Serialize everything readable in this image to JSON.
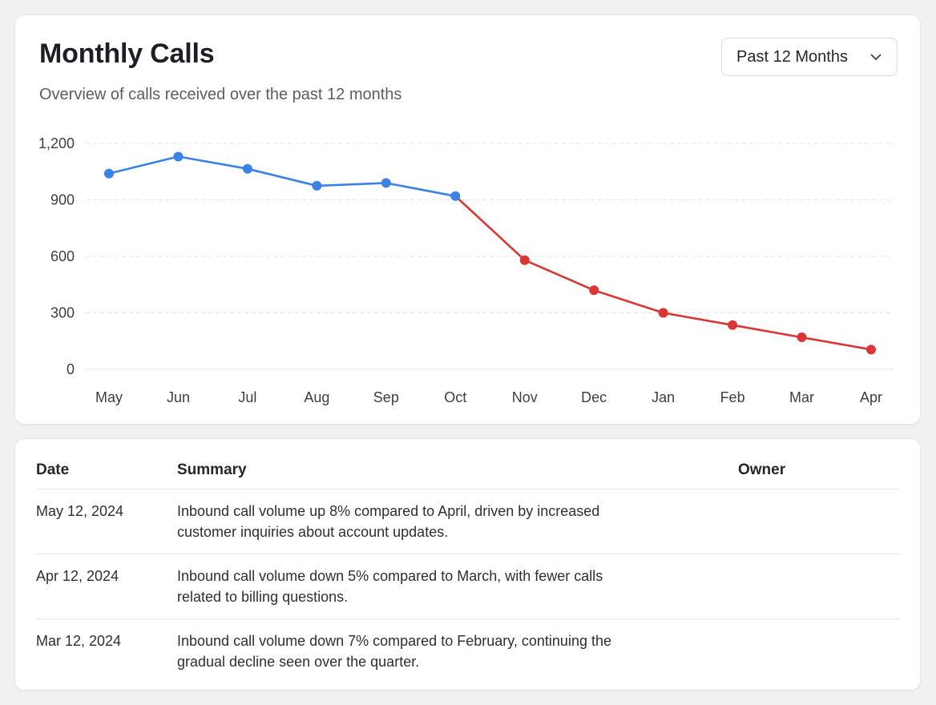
{
  "header": {
    "title": "Monthly Calls",
    "subtitle": "Overview of calls received over the past 12 months",
    "range_select": {
      "selected": "Past 12 Months",
      "icon": "chevron-down-icon"
    }
  },
  "chart_data": {
    "type": "line",
    "x": [
      "May",
      "Jun",
      "Jul",
      "Aug",
      "Sep",
      "Oct",
      "Nov",
      "Dec",
      "Jan",
      "Feb",
      "Mar",
      "Apr"
    ],
    "values": [
      1040,
      1130,
      1065,
      975,
      990,
      920,
      580,
      420,
      300,
      235,
      170,
      105
    ],
    "ylim": [
      0,
      1200
    ],
    "yticks": [
      0,
      300,
      600,
      900,
      1200
    ],
    "ytick_labels": [
      "0",
      "300",
      "600",
      "900",
      "1,200"
    ],
    "grid": true,
    "segments": [
      {
        "from_index": 0,
        "to_index": 5,
        "color": "#3b82e6"
      },
      {
        "from_index": 5,
        "to_index": 11,
        "color": "#dc3535"
      }
    ],
    "title": "",
    "xlabel": "",
    "ylabel": ""
  },
  "table": {
    "headers": {
      "date": "Date",
      "summary": "Summary",
      "owner": "Owner"
    },
    "rows": [
      {
        "date": "May 12, 2024",
        "summary": "Inbound call volume up 8% compared to April, driven by increased customer inquiries about account updates.",
        "owner": ""
      },
      {
        "date": "Apr 12, 2024",
        "summary": "Inbound call volume down 5% compared to March, with fewer calls related to billing questions.",
        "owner": ""
      },
      {
        "date": "Mar 12, 2024",
        "summary": "Inbound call volume down 7% compared to February, continuing the gradual decline seen over the quarter.",
        "owner": ""
      }
    ]
  }
}
